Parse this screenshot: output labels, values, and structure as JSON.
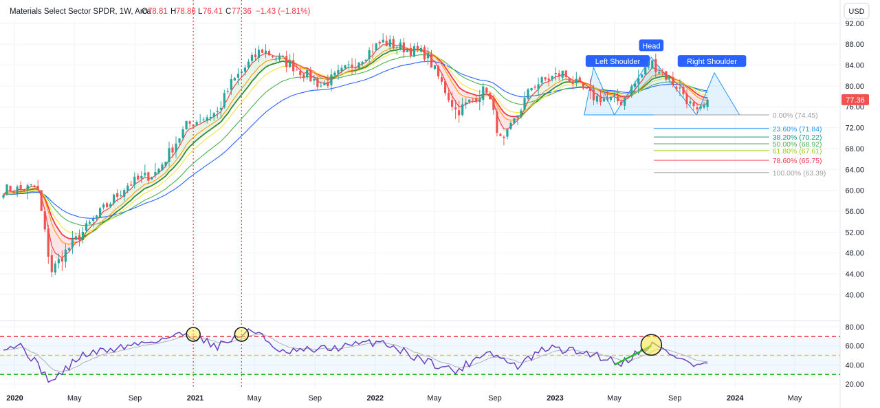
{
  "header": {
    "symbol": "Materials Select Sector SPDR, 1W, Arca",
    "o_label": "O",
    "o_value": "78.81",
    "h_label": "H",
    "h_value": "78.86",
    "l_label": "L",
    "l_value": "76.41",
    "c_label": "C",
    "c_value": "77.36",
    "change": "−1.43 (−1.81%)"
  },
  "currency_button": "USD",
  "last_price_label": "77.36",
  "colors": {
    "up": "#26a69a",
    "down": "#ef5350",
    "rsi": "#6a3fc0",
    "ema_blue": "#2962ff",
    "ema_green": "#4caf50",
    "ema_yellow": "#f5e23c",
    "ema_orange": "#ff9800",
    "ema_red": "#f23645",
    "fib_0": "#9e9e9e",
    "fib_236": "#2196f3",
    "fib_382": "#089981",
    "fib_50": "#4caf50",
    "fib_618": "#9ccc0c",
    "fib_786": "#f23645",
    "fib_100": "#9e9e9e"
  },
  "chart_data": [
    {
      "type": "candlestick",
      "title": "Materials Select Sector SPDR, 1W, Arca",
      "x_axis_labels": [
        "2020",
        "May",
        "Sep",
        "2021",
        "May",
        "Sep",
        "2022",
        "May",
        "Sep",
        "2023",
        "May",
        "Sep",
        "2024",
        "May"
      ],
      "y_ticks": [
        40.0,
        44.0,
        48.0,
        52.0,
        56.0,
        60.0,
        64.0,
        68.0,
        72.0,
        76.0,
        80.0,
        84.0,
        88.0,
        92.0
      ],
      "y_range": [
        36.5,
        92.5
      ],
      "ohlc_keypoints": [
        {
          "date": "2020-01",
          "price": 60.2
        },
        {
          "date": "2020-02",
          "price": 60.8
        },
        {
          "date": "2020-03",
          "price": 44.5
        },
        {
          "date": "2020-04",
          "price": 48.5
        },
        {
          "date": "2020-06",
          "price": 55.0
        },
        {
          "date": "2020-08",
          "price": 61.0
        },
        {
          "date": "2020-10",
          "price": 63.5
        },
        {
          "date": "2020-12",
          "price": 72.5
        },
        {
          "date": "2021-02",
          "price": 75.0
        },
        {
          "date": "2021-03",
          "price": 80.5
        },
        {
          "date": "2021-05",
          "price": 87.0
        },
        {
          "date": "2021-07",
          "price": 84.0
        },
        {
          "date": "2021-09",
          "price": 80.0
        },
        {
          "date": "2021-11",
          "price": 84.0
        },
        {
          "date": "2022-01",
          "price": 88.5
        },
        {
          "date": "2022-04",
          "price": 86.0
        },
        {
          "date": "2022-06",
          "price": 75.0
        },
        {
          "date": "2022-08",
          "price": 79.5
        },
        {
          "date": "2022-09",
          "price": 68.5
        },
        {
          "date": "2022-11",
          "price": 80.0
        },
        {
          "date": "2023-01",
          "price": 82.5
        },
        {
          "date": "2023-03",
          "price": 78.0
        },
        {
          "date": "2023-05",
          "price": 77.0
        },
        {
          "date": "2023-07",
          "price": 84.5
        },
        {
          "date": "2023-09",
          "price": 79.0
        },
        {
          "date": "2023-10",
          "price": 74.5
        },
        {
          "date": "2023-11",
          "price": 77.36
        }
      ],
      "last_price": 77.36,
      "annotations": [
        {
          "text": "Left Shoulder",
          "date": "2023-03",
          "price": 83.0
        },
        {
          "text": "Head",
          "date": "2023-07",
          "price": 86.0
        },
        {
          "text": "Right Shoulder",
          "date": "2023-11",
          "price": 83.0
        }
      ],
      "fibonacci": [
        {
          "label": "0.00% (74.45)",
          "level": 0.0,
          "price": 74.45
        },
        {
          "label": "23.60% (71.84)",
          "level": 0.236,
          "price": 71.84
        },
        {
          "label": "38.20% (70.22)",
          "level": 0.382,
          "price": 70.22
        },
        {
          "label": "50.00% (68.92)",
          "level": 0.5,
          "price": 68.92
        },
        {
          "label": "61.80% (67.61)",
          "level": 0.618,
          "price": 67.61
        },
        {
          "label": "78.60% (65.75)",
          "level": 0.786,
          "price": 65.75
        },
        {
          "label": "100.00% (63.39)",
          "level": 1.0,
          "price": 63.39
        }
      ],
      "vertical_markers": [
        "2020-12-28",
        "2021-04-05"
      ]
    },
    {
      "type": "line",
      "indicator": "RSI",
      "y_ticks": [
        20.0,
        40.0,
        60.0,
        80.0
      ],
      "y_range": [
        15,
        85
      ],
      "overbought": 70,
      "midline": 50,
      "oversold": 30,
      "rsi_keypoints": [
        {
          "date": "2020-01",
          "value": 60
        },
        {
          "date": "2020-03",
          "value": 22
        },
        {
          "date": "2020-05",
          "value": 50
        },
        {
          "date": "2020-09",
          "value": 63
        },
        {
          "date": "2020-12",
          "value": 73
        },
        {
          "date": "2021-02",
          "value": 60
        },
        {
          "date": "2021-04",
          "value": 74
        },
        {
          "date": "2021-05",
          "value": 75
        },
        {
          "date": "2021-06",
          "value": 52
        },
        {
          "date": "2021-10",
          "value": 58
        },
        {
          "date": "2022-01",
          "value": 65
        },
        {
          "date": "2022-03",
          "value": 50
        },
        {
          "date": "2022-06",
          "value": 33
        },
        {
          "date": "2022-08",
          "value": 55
        },
        {
          "date": "2022-10",
          "value": 38
        },
        {
          "date": "2022-12",
          "value": 58
        },
        {
          "date": "2023-03",
          "value": 52
        },
        {
          "date": "2023-05",
          "value": 42
        },
        {
          "date": "2023-07",
          "value": 62
        },
        {
          "date": "2023-10",
          "value": 38
        },
        {
          "date": "2023-11",
          "value": 45
        }
      ]
    }
  ]
}
